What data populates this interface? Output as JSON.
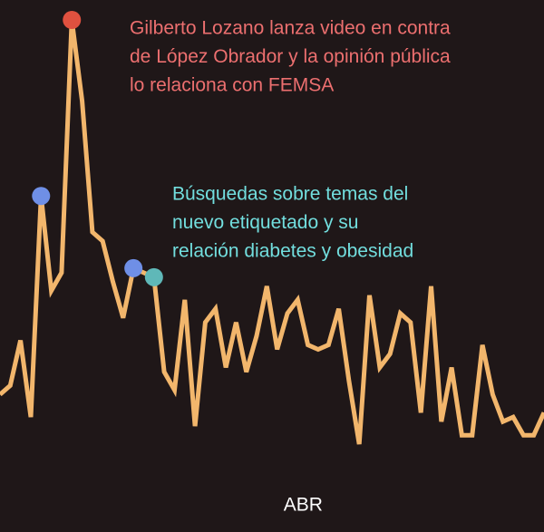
{
  "chart_data": {
    "type": "line",
    "categories": [
      null,
      null,
      null,
      null,
      null,
      null,
      null,
      null,
      null,
      null,
      null,
      null,
      null,
      null,
      null,
      null,
      null,
      null,
      null,
      null,
      null,
      null,
      null,
      null,
      null,
      null,
      null,
      null,
      null,
      "ABR",
      null,
      null,
      null,
      null,
      null,
      null,
      null,
      null,
      null,
      null,
      null,
      null,
      null,
      null,
      null,
      null,
      null,
      null,
      null,
      null,
      null,
      null,
      null,
      null
    ],
    "values": [
      17,
      19,
      29,
      12,
      61,
      40,
      44,
      100,
      82,
      53,
      51,
      42,
      34,
      45,
      44,
      43,
      22,
      18,
      38,
      10,
      33,
      36,
      23,
      33,
      22,
      30,
      41,
      27,
      35,
      38,
      28,
      27,
      28,
      36,
      20,
      6,
      39,
      23,
      26,
      35,
      33,
      13,
      41,
      11,
      23,
      8,
      8,
      28,
      17,
      11,
      12,
      8,
      8,
      13
    ],
    "color": "#f2b66c",
    "ylim": [
      0,
      100
    ],
    "markers": [
      {
        "index": 4,
        "color": "#6f8fe6"
      },
      {
        "index": 7,
        "color": "#e0513f"
      },
      {
        "index": 13,
        "color": "#6f8fe6"
      },
      {
        "index": 15,
        "color": "#5fb8b8"
      }
    ],
    "annotations": [
      {
        "lines": [
          "Gilberto Lozano lanza video en contra",
          "de López Obrador y la opinión pública",
          "lo relaciona con FEMSA"
        ],
        "color": "#ec6f6f"
      },
      {
        "lines": [
          "Búsquedas sobre temas del",
          "nuevo etiquetado y su",
          "relación diabetes y obesidad"
        ],
        "color": "#72dede"
      }
    ]
  }
}
